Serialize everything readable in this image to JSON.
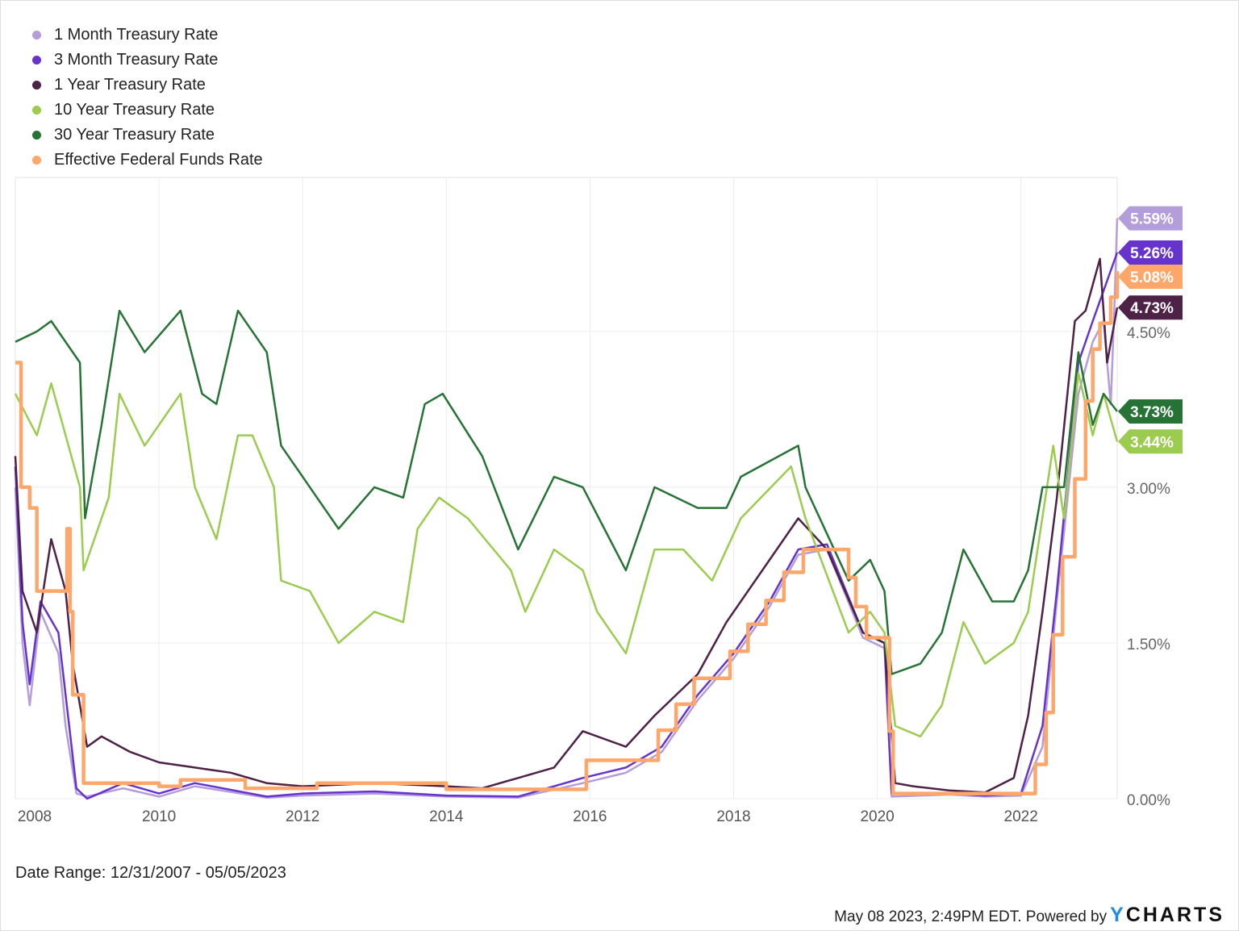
{
  "chart_data": {
    "type": "line",
    "title": "",
    "xlabel": "",
    "ylabel": "",
    "date_range_label": "Date Range: 12/31/2007 - 05/05/2023",
    "xlim": [
      2008.0,
      2023.34
    ],
    "ylim": [
      0,
      6.0
    ],
    "x_ticks": [
      {
        "v": 2008,
        "label": "2008"
      },
      {
        "v": 2010,
        "label": "2010"
      },
      {
        "v": 2012,
        "label": "2012"
      },
      {
        "v": 2014,
        "label": "2014"
      },
      {
        "v": 2016,
        "label": "2016"
      },
      {
        "v": 2018,
        "label": "2018"
      },
      {
        "v": 2020,
        "label": "2020"
      },
      {
        "v": 2022,
        "label": "2022"
      }
    ],
    "y_ticks": [
      {
        "v": 0,
        "label": "0.00%"
      },
      {
        "v": 1.5,
        "label": "1.50%"
      },
      {
        "v": 3.0,
        "label": "3.00%"
      },
      {
        "v": 4.5,
        "label": "4.50%"
      }
    ],
    "grid": true,
    "legend_position": "top-left",
    "series": [
      {
        "name": "1 Month Treasury Rate",
        "color": "#b39ddb",
        "width": 2.5,
        "end_label": "5.59%",
        "end_value": 5.59,
        "step": false,
        "points": [
          [
            2008,
            3.0
          ],
          [
            2008.1,
            1.5
          ],
          [
            2008.2,
            0.9
          ],
          [
            2008.35,
            1.8
          ],
          [
            2008.6,
            1.4
          ],
          [
            2008.7,
            0.7
          ],
          [
            2008.85,
            0.05
          ],
          [
            2009,
            0.02
          ],
          [
            2009.5,
            0.1
          ],
          [
            2010,
            0.02
          ],
          [
            2010.5,
            0.12
          ],
          [
            2011.5,
            0.01
          ],
          [
            2012,
            0.03
          ],
          [
            2013,
            0.05
          ],
          [
            2014,
            0.02
          ],
          [
            2015,
            0.01
          ],
          [
            2015.9,
            0.15
          ],
          [
            2016.5,
            0.25
          ],
          [
            2017,
            0.45
          ],
          [
            2017.5,
            0.95
          ],
          [
            2018,
            1.35
          ],
          [
            2018.5,
            1.85
          ],
          [
            2018.9,
            2.35
          ],
          [
            2019.3,
            2.4
          ],
          [
            2019.8,
            1.55
          ],
          [
            2020.1,
            1.45
          ],
          [
            2020.2,
            0.02
          ],
          [
            2021,
            0.04
          ],
          [
            2021.5,
            0.02
          ],
          [
            2022,
            0.03
          ],
          [
            2022.3,
            0.5
          ],
          [
            2022.5,
            1.9
          ],
          [
            2022.8,
            3.9
          ],
          [
            2023,
            4.4
          ],
          [
            2023.15,
            4.6
          ],
          [
            2023.25,
            3.8
          ],
          [
            2023.3,
            4.7
          ],
          [
            2023.34,
            5.59
          ]
        ]
      },
      {
        "name": "3 Month Treasury Rate",
        "color": "#6633cc",
        "width": 2.5,
        "end_label": "5.26%",
        "end_value": 5.26,
        "step": false,
        "points": [
          [
            2008,
            3.2
          ],
          [
            2008.1,
            1.7
          ],
          [
            2008.2,
            1.1
          ],
          [
            2008.35,
            1.9
          ],
          [
            2008.6,
            1.6
          ],
          [
            2008.85,
            0.1
          ],
          [
            2009,
            0.0
          ],
          [
            2009.5,
            0.15
          ],
          [
            2010,
            0.05
          ],
          [
            2010.5,
            0.15
          ],
          [
            2011.5,
            0.02
          ],
          [
            2012,
            0.05
          ],
          [
            2013,
            0.07
          ],
          [
            2014,
            0.03
          ],
          [
            2015,
            0.02
          ],
          [
            2015.9,
            0.2
          ],
          [
            2016.5,
            0.3
          ],
          [
            2017,
            0.5
          ],
          [
            2017.5,
            1.0
          ],
          [
            2018,
            1.4
          ],
          [
            2018.5,
            1.9
          ],
          [
            2018.9,
            2.4
          ],
          [
            2019.3,
            2.45
          ],
          [
            2019.8,
            1.6
          ],
          [
            2020.1,
            1.5
          ],
          [
            2020.2,
            0.05
          ],
          [
            2021,
            0.05
          ],
          [
            2021.5,
            0.03
          ],
          [
            2022,
            0.05
          ],
          [
            2022.3,
            0.7
          ],
          [
            2022.5,
            2.0
          ],
          [
            2022.8,
            4.2
          ],
          [
            2023,
            4.6
          ],
          [
            2023.34,
            5.26
          ]
        ]
      },
      {
        "name": "1 Year Treasury Rate",
        "color": "#4e2147",
        "width": 2.5,
        "end_label": "4.73%",
        "end_value": 4.73,
        "step": false,
        "points": [
          [
            2008,
            3.3
          ],
          [
            2008.1,
            2.0
          ],
          [
            2008.3,
            1.6
          ],
          [
            2008.5,
            2.5
          ],
          [
            2008.7,
            2.0
          ],
          [
            2008.8,
            1.3
          ],
          [
            2009,
            0.5
          ],
          [
            2009.2,
            0.6
          ],
          [
            2009.6,
            0.45
          ],
          [
            2010,
            0.35
          ],
          [
            2010.5,
            0.3
          ],
          [
            2011,
            0.25
          ],
          [
            2011.5,
            0.15
          ],
          [
            2012,
            0.12
          ],
          [
            2013,
            0.15
          ],
          [
            2014,
            0.12
          ],
          [
            2014.5,
            0.1
          ],
          [
            2015,
            0.2
          ],
          [
            2015.5,
            0.3
          ],
          [
            2015.9,
            0.65
          ],
          [
            2016.5,
            0.5
          ],
          [
            2016.9,
            0.8
          ],
          [
            2017.5,
            1.2
          ],
          [
            2017.9,
            1.7
          ],
          [
            2018.5,
            2.3
          ],
          [
            2018.9,
            2.7
          ],
          [
            2019.3,
            2.4
          ],
          [
            2019.8,
            1.6
          ],
          [
            2020.1,
            1.5
          ],
          [
            2020.25,
            0.15
          ],
          [
            2020.5,
            0.12
          ],
          [
            2021,
            0.08
          ],
          [
            2021.5,
            0.06
          ],
          [
            2021.9,
            0.2
          ],
          [
            2022.1,
            0.8
          ],
          [
            2022.3,
            1.8
          ],
          [
            2022.5,
            2.9
          ],
          [
            2022.75,
            4.6
          ],
          [
            2022.9,
            4.7
          ],
          [
            2023.1,
            5.2
          ],
          [
            2023.2,
            4.2
          ],
          [
            2023.34,
            4.73
          ]
        ]
      },
      {
        "name": "10 Year Treasury Rate",
        "color": "#9ccc4f",
        "width": 2.5,
        "end_label": "3.44%",
        "end_value": 3.44,
        "step": false,
        "points": [
          [
            2008,
            3.9
          ],
          [
            2008.3,
            3.5
          ],
          [
            2008.5,
            4.0
          ],
          [
            2008.9,
            3.0
          ],
          [
            2008.95,
            2.2
          ],
          [
            2009.3,
            2.9
          ],
          [
            2009.45,
            3.9
          ],
          [
            2009.8,
            3.4
          ],
          [
            2010.3,
            3.9
          ],
          [
            2010.5,
            3.0
          ],
          [
            2010.8,
            2.5
          ],
          [
            2011.1,
            3.5
          ],
          [
            2011.3,
            3.5
          ],
          [
            2011.6,
            3.0
          ],
          [
            2011.7,
            2.1
          ],
          [
            2012.1,
            2.0
          ],
          [
            2012.5,
            1.5
          ],
          [
            2013,
            1.8
          ],
          [
            2013.4,
            1.7
          ],
          [
            2013.6,
            2.6
          ],
          [
            2013.9,
            2.9
          ],
          [
            2014.3,
            2.7
          ],
          [
            2014.9,
            2.2
          ],
          [
            2015.1,
            1.8
          ],
          [
            2015.5,
            2.4
          ],
          [
            2015.9,
            2.2
          ],
          [
            2016.1,
            1.8
          ],
          [
            2016.5,
            1.4
          ],
          [
            2016.9,
            2.4
          ],
          [
            2017.3,
            2.4
          ],
          [
            2017.7,
            2.1
          ],
          [
            2018.1,
            2.7
          ],
          [
            2018.8,
            3.2
          ],
          [
            2019,
            2.7
          ],
          [
            2019.6,
            1.6
          ],
          [
            2019.9,
            1.8
          ],
          [
            2020.1,
            1.6
          ],
          [
            2020.25,
            0.7
          ],
          [
            2020.6,
            0.6
          ],
          [
            2020.9,
            0.9
          ],
          [
            2021.2,
            1.7
          ],
          [
            2021.5,
            1.3
          ],
          [
            2021.9,
            1.5
          ],
          [
            2022.1,
            1.8
          ],
          [
            2022.45,
            3.4
          ],
          [
            2022.6,
            2.7
          ],
          [
            2022.8,
            4.1
          ],
          [
            2023,
            3.5
          ],
          [
            2023.15,
            3.9
          ],
          [
            2023.34,
            3.44
          ]
        ]
      },
      {
        "name": "30 Year Treasury Rate",
        "color": "#277336",
        "width": 2.5,
        "end_label": "3.73%",
        "end_value": 3.73,
        "step": false,
        "points": [
          [
            2008,
            4.4
          ],
          [
            2008.3,
            4.5
          ],
          [
            2008.5,
            4.6
          ],
          [
            2008.9,
            4.2
          ],
          [
            2008.97,
            2.7
          ],
          [
            2009.2,
            3.6
          ],
          [
            2009.45,
            4.7
          ],
          [
            2009.8,
            4.3
          ],
          [
            2010.3,
            4.7
          ],
          [
            2010.6,
            3.9
          ],
          [
            2010.8,
            3.8
          ],
          [
            2011.1,
            4.7
          ],
          [
            2011.5,
            4.3
          ],
          [
            2011.7,
            3.4
          ],
          [
            2012.5,
            2.6
          ],
          [
            2013,
            3.0
          ],
          [
            2013.4,
            2.9
          ],
          [
            2013.7,
            3.8
          ],
          [
            2013.95,
            3.9
          ],
          [
            2014.5,
            3.3
          ],
          [
            2015,
            2.4
          ],
          [
            2015.5,
            3.1
          ],
          [
            2015.9,
            3.0
          ],
          [
            2016.5,
            2.2
          ],
          [
            2016.9,
            3.0
          ],
          [
            2017.5,
            2.8
          ],
          [
            2017.9,
            2.8
          ],
          [
            2018.1,
            3.1
          ],
          [
            2018.9,
            3.4
          ],
          [
            2019,
            3.0
          ],
          [
            2019.6,
            2.1
          ],
          [
            2019.9,
            2.3
          ],
          [
            2020.1,
            2.0
          ],
          [
            2020.2,
            1.2
          ],
          [
            2020.6,
            1.3
          ],
          [
            2020.9,
            1.6
          ],
          [
            2021.2,
            2.4
          ],
          [
            2021.6,
            1.9
          ],
          [
            2021.9,
            1.9
          ],
          [
            2022.1,
            2.2
          ],
          [
            2022.3,
            3.0
          ],
          [
            2022.6,
            3.0
          ],
          [
            2022.8,
            4.3
          ],
          [
            2023,
            3.6
          ],
          [
            2023.15,
            3.9
          ],
          [
            2023.34,
            3.73
          ]
        ]
      },
      {
        "name": "Effective Federal Funds Rate",
        "color": "#ffa66b",
        "width": 4.5,
        "end_label": "5.08%",
        "end_value": 5.08,
        "step": true,
        "points": [
          [
            2008,
            4.2
          ],
          [
            2008.08,
            3.0
          ],
          [
            2008.2,
            2.8
          ],
          [
            2008.3,
            2.0
          ],
          [
            2008.72,
            2.6
          ],
          [
            2008.76,
            1.8
          ],
          [
            2008.8,
            1.0
          ],
          [
            2008.95,
            0.15
          ],
          [
            2010,
            0.12
          ],
          [
            2010.3,
            0.18
          ],
          [
            2011.2,
            0.1
          ],
          [
            2012.2,
            0.15
          ],
          [
            2014,
            0.09
          ],
          [
            2015.95,
            0.37
          ],
          [
            2016.95,
            0.66
          ],
          [
            2017.2,
            0.91
          ],
          [
            2017.45,
            1.16
          ],
          [
            2017.95,
            1.42
          ],
          [
            2018.2,
            1.68
          ],
          [
            2018.45,
            1.91
          ],
          [
            2018.7,
            2.18
          ],
          [
            2018.97,
            2.4
          ],
          [
            2019.6,
            2.13
          ],
          [
            2019.7,
            1.85
          ],
          [
            2019.85,
            1.55
          ],
          [
            2020.17,
            0.65
          ],
          [
            2020.22,
            0.05
          ],
          [
            2022.2,
            0.33
          ],
          [
            2022.35,
            0.83
          ],
          [
            2022.45,
            1.58
          ],
          [
            2022.58,
            2.33
          ],
          [
            2022.75,
            3.08
          ],
          [
            2022.9,
            3.83
          ],
          [
            2023.0,
            4.33
          ],
          [
            2023.1,
            4.58
          ],
          [
            2023.25,
            4.83
          ],
          [
            2023.34,
            5.08
          ]
        ]
      }
    ]
  },
  "footer": {
    "timestamp": "May 08 2023, 2:49PM EDT. Powered by",
    "logo_y": "Y",
    "logo_rest": "CHARTS"
  }
}
